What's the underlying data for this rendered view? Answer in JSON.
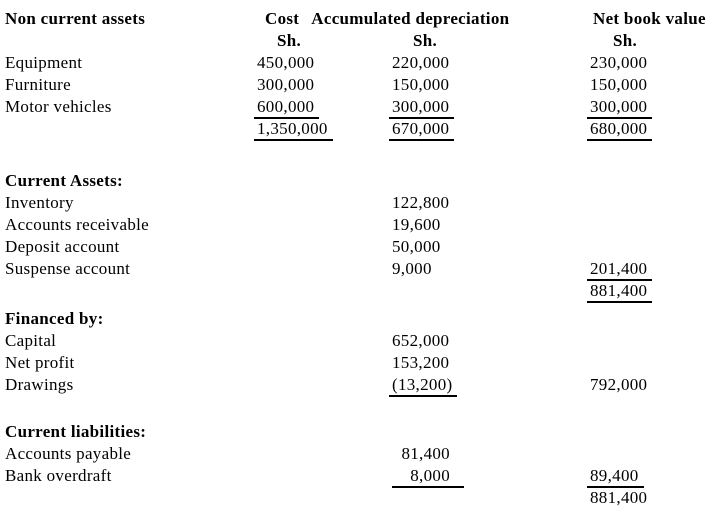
{
  "columns": {
    "label": "Non current assets",
    "cost": "Cost",
    "accumulated_depreciation": "Accumulated depreciation",
    "net_book_value": "Net book value",
    "currency": "Sh."
  },
  "non_current_assets": {
    "rows": [
      {
        "label": "Equipment",
        "cost": "450,000",
        "accum": "220,000",
        "nbv": "230,000"
      },
      {
        "label": "Furniture",
        "cost": "300,000",
        "accum": "150,000",
        "nbv": "150,000"
      },
      {
        "label": "Motor vehicles",
        "cost": "600,000",
        "accum": "300,000",
        "nbv": "300,000"
      }
    ],
    "total_cost": "1,350,000",
    "total_accum": "670,000",
    "total_nbv": "680,000"
  },
  "current_assets": {
    "heading": "Current Assets:",
    "rows": [
      {
        "label": "Inventory",
        "amount": "122,800"
      },
      {
        "label": "Accounts receivable",
        "amount": "19,600"
      },
      {
        "label": "Deposit account",
        "amount": "50,000"
      },
      {
        "label": "Suspense account",
        "amount": "9,000"
      }
    ],
    "subtotal": "201,400",
    "total": "881,400"
  },
  "financed_by": {
    "heading": "Financed by:",
    "rows": [
      {
        "label": "Capital",
        "amount": "652,000"
      },
      {
        "label": "Net profit",
        "amount": "153,200"
      },
      {
        "label": "Drawings",
        "amount": "(13,200)"
      }
    ],
    "total": "792,000"
  },
  "current_liabilities": {
    "heading": "Current liabilities:",
    "rows": [
      {
        "label": "Accounts payable",
        "amount": "81,400"
      },
      {
        "label": "Bank overdraft",
        "amount": "8,000"
      }
    ],
    "subtotal": "89,400",
    "total": "881,400"
  }
}
